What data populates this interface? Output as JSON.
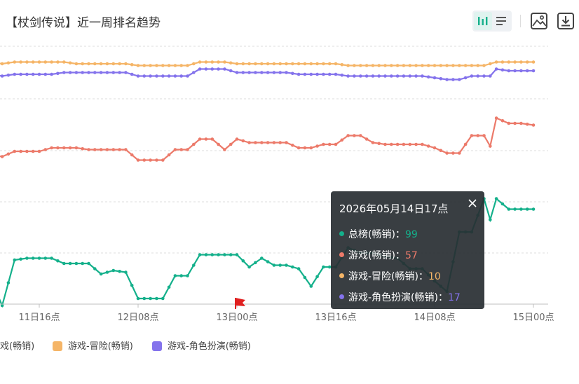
{
  "title": "【杖剑传说】近一周排名趋势",
  "toolbar": {
    "icons": [
      "bar-chart-view-icon",
      "list-view-icon",
      "image-icon",
      "download-icon"
    ]
  },
  "colors": {
    "total": "#14b08b",
    "game": "#ec7a6a",
    "adventure": "#f5b567",
    "rpg": "#8473ec",
    "grid": "#dcdcdc",
    "marker": "#e02020"
  },
  "chart_data": {
    "type": "line",
    "x_ticks": [
      "11日16点",
      "12日08点",
      "13日00点",
      "13日16点",
      "14日08点",
      "15日00点"
    ],
    "y_axis": "inverted rank",
    "grid": true,
    "legend_position": "bottom",
    "series": [
      {
        "name": "总榜(畅销)",
        "points": [
          [
            "11日08点",
            132
          ],
          [
            "11日10点",
            148
          ],
          [
            "11日12点",
            122
          ],
          [
            "11日14点",
            121
          ],
          [
            "11日16点",
            121
          ],
          [
            "11日18点",
            121
          ],
          [
            "11日20点",
            124
          ],
          [
            "11日22点",
            124
          ],
          [
            "12日00点",
            124
          ],
          [
            "12日02点",
            130
          ],
          [
            "12日04点",
            128
          ],
          [
            "12日06点",
            129
          ],
          [
            "12日08点",
            144
          ],
          [
            "12日10点",
            144
          ],
          [
            "12日12点",
            144
          ],
          [
            "12日14point",
            131
          ],
          [
            "12日16点",
            131
          ],
          [
            "12日18点",
            119
          ],
          [
            "12日20点",
            119
          ],
          [
            "12日22点",
            119
          ],
          [
            "13日00点",
            119
          ],
          [
            "13日02点",
            126
          ],
          [
            "13日04点",
            121
          ],
          [
            "13日06点",
            125
          ],
          [
            "13日08点",
            125
          ],
          [
            "13日10点",
            127
          ],
          [
            "13日12点",
            137
          ],
          [
            "13日14点",
            126
          ],
          [
            "13日16点",
            126
          ],
          [
            "13日18点",
            115
          ],
          [
            "13日20点",
            118
          ],
          [
            "13日22点",
            118
          ],
          [
            "14日00点",
            120
          ],
          [
            "14日02点",
            121
          ],
          [
            "14日04点",
            127
          ],
          [
            "14日06点",
            127
          ],
          [
            "14日08点",
            134
          ],
          [
            "14日10点",
            140
          ],
          [
            "14日12点",
            106
          ],
          [
            "14日14点",
            106
          ],
          [
            "14日16点",
            87
          ],
          [
            "14日17点",
            99
          ],
          [
            "14日18点",
            87
          ],
          [
            "14日20点",
            93
          ],
          [
            "14日22点",
            93
          ],
          [
            "15日00点",
            93
          ]
        ]
      },
      {
        "name": "游戏(畅销)",
        "points": [
          [
            "11日08点",
            62
          ],
          [
            "11日10点",
            63
          ],
          [
            "11日12点",
            60
          ],
          [
            "11日14点",
            60
          ],
          [
            "11日16点",
            60
          ],
          [
            "11日18点",
            58
          ],
          [
            "11日20点",
            58
          ],
          [
            "11日22点",
            58
          ],
          [
            "12日00点",
            59
          ],
          [
            "12日02点",
            59
          ],
          [
            "12日04点",
            59
          ],
          [
            "12日06点",
            59
          ],
          [
            "12日08点",
            65
          ],
          [
            "12日10点",
            65
          ],
          [
            "12日12点",
            65
          ],
          [
            "12日14点",
            59
          ],
          [
            "12日16点",
            59
          ],
          [
            "12日18点",
            53
          ],
          [
            "12日20点",
            53
          ],
          [
            "12日22点",
            59
          ],
          [
            "13日00点",
            53
          ],
          [
            "13日02点",
            55
          ],
          [
            "13日04点",
            55
          ],
          [
            "13日06点",
            55
          ],
          [
            "13日08点",
            55
          ],
          [
            "13日10点",
            58
          ],
          [
            "13日12点",
            58
          ],
          [
            "13日14点",
            56
          ],
          [
            "13日16点",
            56
          ],
          [
            "13日18点",
            51
          ],
          [
            "13日20点",
            51
          ],
          [
            "13日22点",
            55
          ],
          [
            "14日00点",
            56
          ],
          [
            "14日02点",
            56
          ],
          [
            "14日04点",
            56
          ],
          [
            "14日06点",
            56
          ],
          [
            "14日08点",
            58
          ],
          [
            "14日10点",
            61
          ],
          [
            "14日12点",
            61
          ],
          [
            "14日14点",
            51
          ],
          [
            "14日16点",
            51
          ],
          [
            "14日17点",
            57
          ],
          [
            "14日18点",
            41
          ],
          [
            "14日20点",
            44
          ],
          [
            "14日22点",
            44
          ],
          [
            "15日00点",
            45
          ]
        ]
      },
      {
        "name": "游戏-冒险(畅销)",
        "points": [
          [
            "11日08点",
            9
          ],
          [
            "11日10点",
            10
          ],
          [
            "11日12点",
            9
          ],
          [
            "11日14点",
            9
          ],
          [
            "11日16点",
            9
          ],
          [
            "11日18点",
            9
          ],
          [
            "11日20点",
            9
          ],
          [
            "11日22点",
            10
          ],
          [
            "12日00点",
            10
          ],
          [
            "12日02点",
            10
          ],
          [
            "12日04点",
            10
          ],
          [
            "12日06点",
            10
          ],
          [
            "12日08点",
            11
          ],
          [
            "12日10点",
            11
          ],
          [
            "12日12点",
            11
          ],
          [
            "12日14点",
            11
          ],
          [
            "12日16点",
            11
          ],
          [
            "12日18点",
            9
          ],
          [
            "12日20点",
            9
          ],
          [
            "12日22点",
            9
          ],
          [
            "13日00点",
            10
          ],
          [
            "13日02点",
            10
          ],
          [
            "13日04点",
            10
          ],
          [
            "13日06点",
            10
          ],
          [
            "13日08点",
            10
          ],
          [
            "13日10点",
            10
          ],
          [
            "13日12点",
            10
          ],
          [
            "13日14点",
            10
          ],
          [
            "13日16点",
            10
          ],
          [
            "13日18点",
            11
          ],
          [
            "13日20点",
            11
          ],
          [
            "13日22点",
            11
          ],
          [
            "14日00点",
            11
          ],
          [
            "14日02点",
            11
          ],
          [
            "14日04点",
            11
          ],
          [
            "14日06点",
            11
          ],
          [
            "14日08点",
            11
          ],
          [
            "14日10点",
            11
          ],
          [
            "14日12点",
            11
          ],
          [
            "14日14点",
            11
          ],
          [
            "14日16点",
            11
          ],
          [
            "14日17点",
            10
          ],
          [
            "14日18点",
            9
          ],
          [
            "14日20点",
            9
          ],
          [
            "14日22点",
            9
          ],
          [
            "15日00点",
            9
          ]
        ]
      },
      {
        "name": "游戏-角色扮演(畅销)",
        "points": [
          [
            "11日08点",
            16
          ],
          [
            "11日10点",
            17
          ],
          [
            "11日12点",
            16
          ],
          [
            "11日14点",
            16
          ],
          [
            "11日16点",
            16
          ],
          [
            "11日18点",
            16
          ],
          [
            "11日20点",
            15
          ],
          [
            "11日22点",
            15
          ],
          [
            "12日00点",
            15
          ],
          [
            "12日02点",
            15
          ],
          [
            "12日04点",
            15
          ],
          [
            "12日06点",
            15
          ],
          [
            "12日08点",
            17
          ],
          [
            "12日10点",
            17
          ],
          [
            "12日12点",
            17
          ],
          [
            "12日14点",
            17
          ],
          [
            "12日16点",
            17
          ],
          [
            "12日18点",
            13
          ],
          [
            "12日20点",
            13
          ],
          [
            "12日22点",
            13
          ],
          [
            "13日00点",
            15
          ],
          [
            "13日02点",
            15
          ],
          [
            "13日04点",
            15
          ],
          [
            "13日06点",
            15
          ],
          [
            "13日08点",
            15
          ],
          [
            "13日10点",
            16
          ],
          [
            "13日12点",
            16
          ],
          [
            "13日14点",
            16
          ],
          [
            "13日16点",
            16
          ],
          [
            "13日18点",
            17
          ],
          [
            "13日20点",
            17
          ],
          [
            "13日22点",
            17
          ],
          [
            "14日00点",
            17
          ],
          [
            "14日02点",
            17
          ],
          [
            "14日04点",
            17
          ],
          [
            "14日06点",
            17
          ],
          [
            "14日08点",
            18
          ],
          [
            "14日10点",
            19
          ],
          [
            "14日12点",
            19
          ],
          [
            "14日14点",
            17
          ],
          [
            "14日16点",
            17
          ],
          [
            "14日17点",
            17
          ],
          [
            "14日18点",
            13
          ],
          [
            "14日20点",
            14
          ],
          [
            "14日22点",
            14
          ],
          [
            "15日00点",
            14
          ]
        ]
      }
    ],
    "annotations": [
      {
        "type": "flag",
        "at": "13日00点"
      }
    ]
  },
  "tooltip": {
    "time": "2026年05月14日17点",
    "rows": [
      {
        "name": "总榜(畅销)：",
        "value": "99"
      },
      {
        "name": "游戏(畅销)：",
        "value": "57"
      },
      {
        "name": "游戏-冒险(畅销)：",
        "value": "10"
      },
      {
        "name": "游戏-角色扮演(畅销)：",
        "value": "17"
      }
    ]
  },
  "legend": [
    {
      "label": "游戏(畅销)"
    },
    {
      "label": "游戏-冒险(畅销)"
    },
    {
      "label": "游戏-角色扮演(畅销)"
    }
  ]
}
